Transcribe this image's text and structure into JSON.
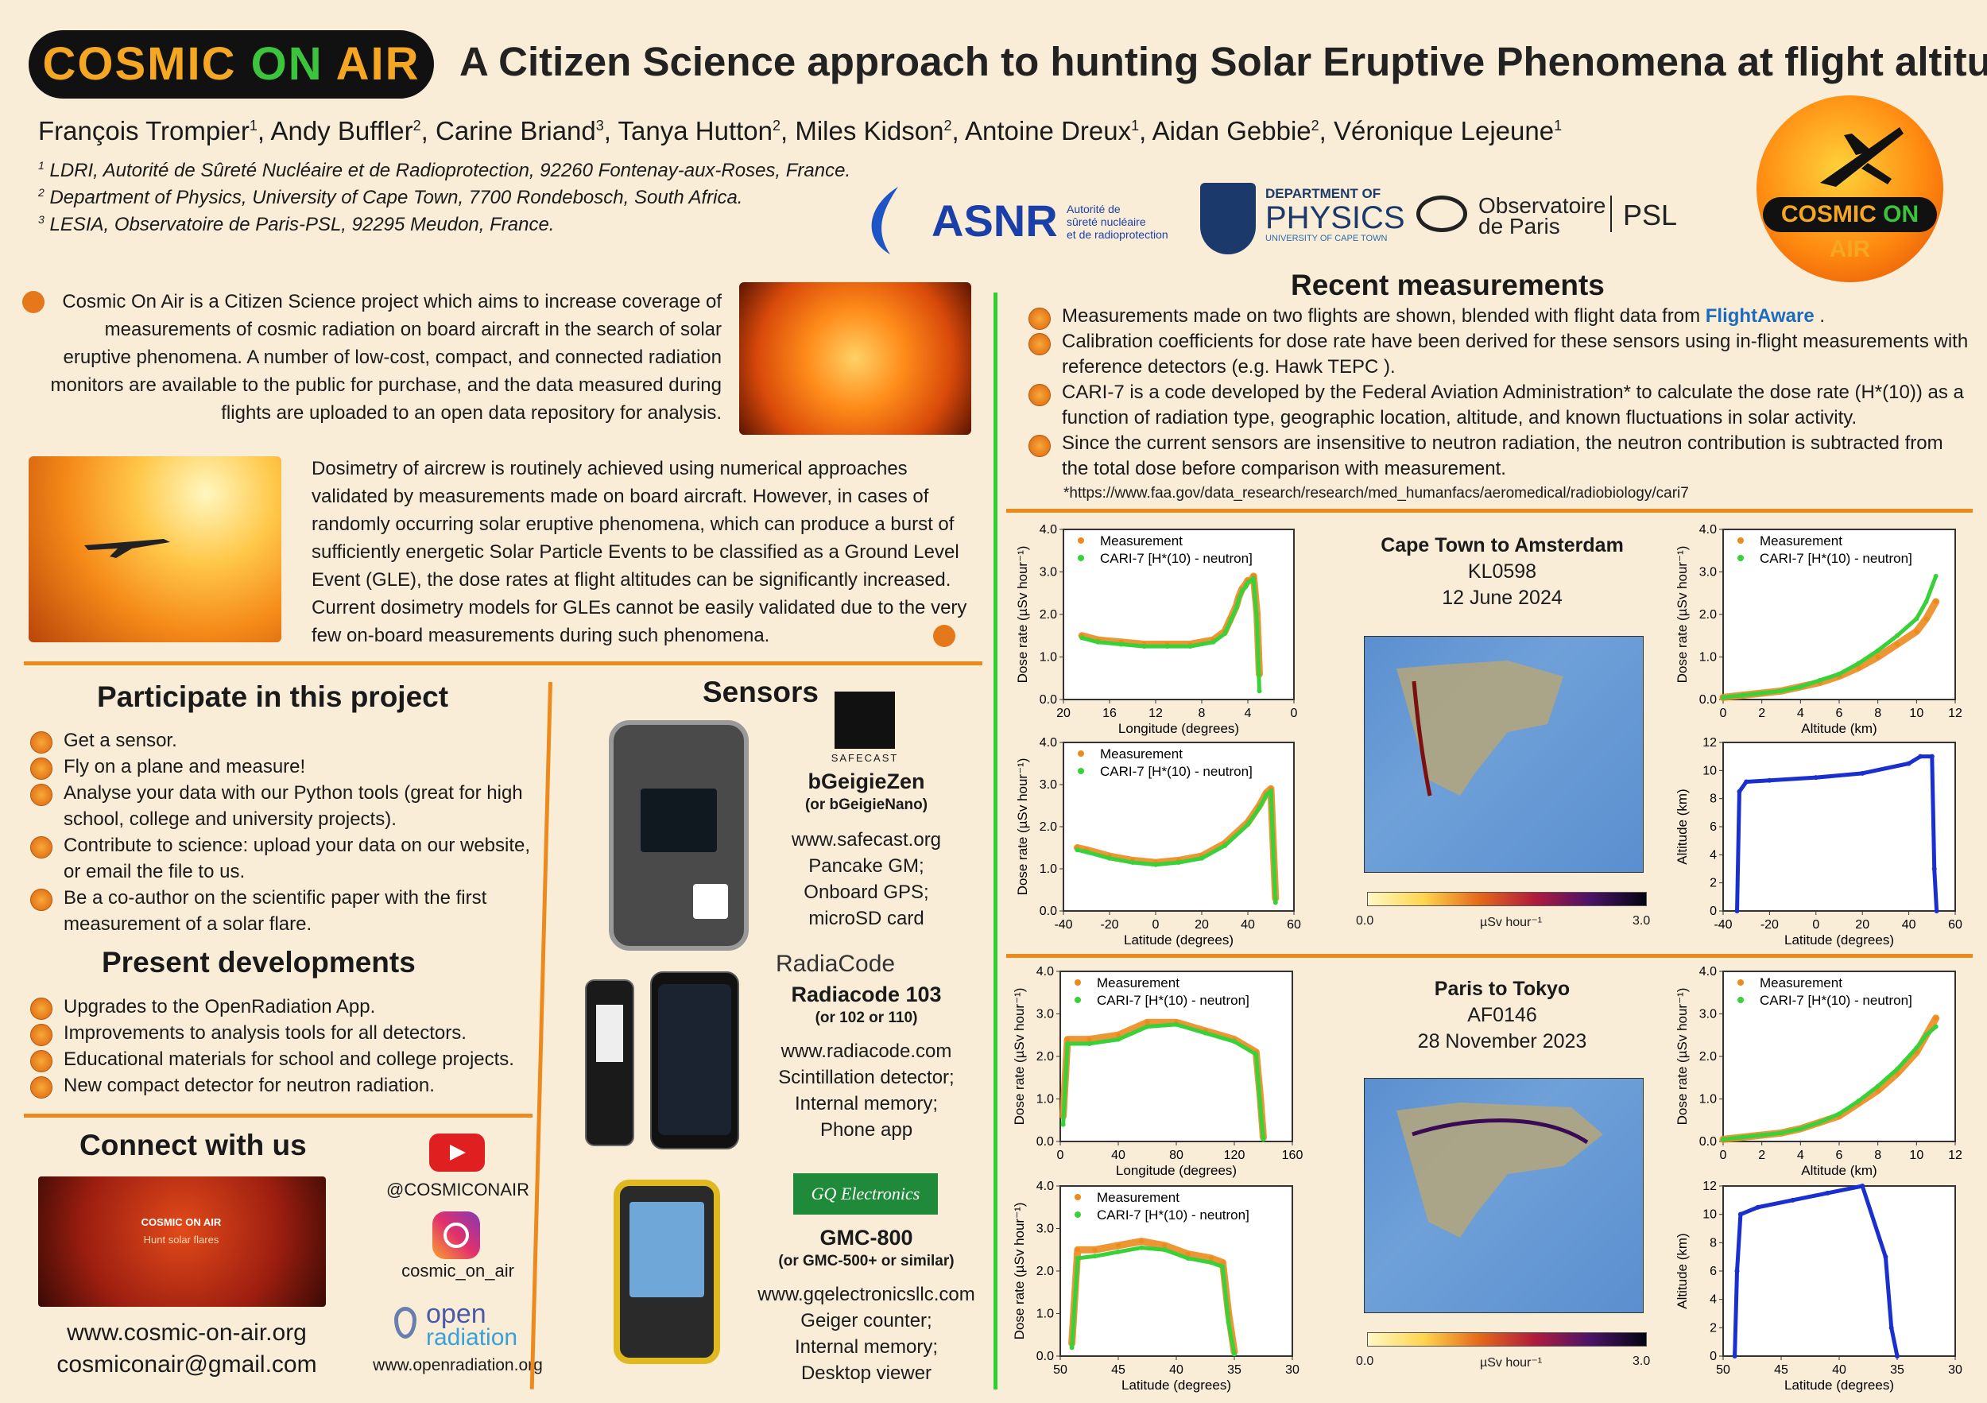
{
  "header": {
    "logo_text_a": "COSMIC ",
    "logo_text_on": "ON",
    "logo_text_b": " AIR",
    "title": "A Citizen Science approach to hunting Solar Eruptive Phenomena at flight altitudes",
    "authors": [
      {
        "name": "François Trompier",
        "sup": "1"
      },
      {
        "name": "Andy Buffler",
        "sup": "2"
      },
      {
        "name": "Carine Briand",
        "sup": "3"
      },
      {
        "name": "Tanya Hutton",
        "sup": "2"
      },
      {
        "name": "Miles Kidson",
        "sup": "2"
      },
      {
        "name": "Antoine Dreux",
        "sup": "1"
      },
      {
        "name": "Aidan Gebbie",
        "sup": "2"
      },
      {
        "name": "Véronique Lejeune",
        "sup": "1"
      }
    ],
    "affiliations": [
      {
        "sup": "1",
        "text": "LDRI, Autorité de Sûreté Nucléaire et de Radioprotection, 92260 Fontenay-aux-Roses, France."
      },
      {
        "sup": "2",
        "text": "Department of Physics, University of Cape Town, 7700 Rondebosch, South Africa."
      },
      {
        "sup": "3",
        "text": "LESIA, Observatoire de Paris-PSL, 92295 Meudon, France."
      }
    ],
    "partners": {
      "asnr": "ASNR",
      "asnr_sub1": "Autorité de",
      "asnr_sub2": "sûreté nucléaire",
      "asnr_sub3": "et de radioprotection",
      "uct_a": "DEPARTMENT OF",
      "uct_b": "PHYSICS",
      "uct_c": "UNIVERSITY OF CAPE TOWN",
      "obs_a": "Observatoire",
      "obs_b": "de Paris",
      "psl": "PSL"
    },
    "round_logo_a": "COSMIC ",
    "round_logo_on": "ON",
    "round_logo_b": " AIR"
  },
  "intro": {
    "p1": "Cosmic On Air is a Citizen Science project which aims to increase coverage of measurements of cosmic radiation on board aircraft in the search of solar eruptive phenomena. A number of low-cost, compact, and connected radiation monitors are available to the public for purchase, and the data measured during flights are uploaded to an open data repository for analysis.",
    "p2": "Dosimetry of aircrew is routinely achieved using numerical approaches validated by measurements made on board aircraft. However, in cases of randomly occurring solar eruptive phenomena, which can produce a burst of sufficiently energetic Solar Particle Events to be classified as a Ground Level Event (GLE), the dose rates at flight altitudes can be significantly increased. Current dosimetry models for GLEs cannot be easily validated due to the very few on-board measurements during such phenomena."
  },
  "participate": {
    "heading": "Participate in this project",
    "items": [
      "Get a sensor.",
      "Fly on a plane and measure!",
      "Analyse your data with our Python tools (great for high school, college and university projects).",
      "Contribute to science: upload your data on our website, or email the file to us.",
      "Be a co-author on the scientific paper with the first measurement of a solar flare."
    ]
  },
  "developments": {
    "heading": "Present developments",
    "items": [
      "Upgrades to the OpenRadiation App.",
      "Improvements to analysis tools for all detectors.",
      "Educational materials for school and college projects.",
      "New compact detector for neutron radiation."
    ]
  },
  "connect": {
    "heading": "Connect with us",
    "banner_brand": "COSMIC ON AIR",
    "banner_tagline": "Hunt solar flares",
    "youtube": "@COSMICONAIR",
    "instagram": "cosmic_on_air",
    "openradiation_a": "open",
    "openradiation_b": "radiation",
    "openradiation_url": "www.openradiation.org",
    "website": "www.cosmic-on-air.org",
    "email": "cosmiconair@gmail.com"
  },
  "sensors": {
    "heading": "Sensors",
    "items": [
      {
        "brand": "SAFECAST",
        "name": "bGeigieZen",
        "sub": "(or bGeigieNano)",
        "url": "www.safecast.org",
        "features": [
          "Pancake GM;",
          "Onboard GPS;",
          "microSD card"
        ]
      },
      {
        "brand": "RadiaCode",
        "name": "Radiacode 103",
        "sub": "(or 102 or 110)",
        "url": "www.radiacode.com",
        "features": [
          "Scintillation detector;",
          "Internal memory;",
          "Phone app"
        ]
      },
      {
        "brand": "GQ Electronics",
        "name": "GMC-800",
        "sub": "(or GMC-500+ or similar)",
        "url": "www.gqelectronicsllc.com",
        "features": [
          "Geiger counter;",
          "Internal memory;",
          "Desktop viewer"
        ]
      }
    ]
  },
  "recent": {
    "heading": "Recent measurements",
    "items": [
      "Measurements made on two flights are shown, blended with flight data from",
      "Calibration coefficients for dose rate have been derived for these sensors using in-flight measurements with reference detectors (e.g. Hawk TEPC ).",
      "CARI-7 is a code developed by the Federal Aviation Administration* to calculate the dose rate (H*(10)) as a function of radiation type, geographic location, altitude, and known fluctuations in solar activity.",
      "Since the current sensors are insensitive to neutron radiation, the neutron contribution is subtracted from the total dose before comparison with measurement."
    ],
    "flightaware": "FlightAware",
    "footnote": "*https://www.faa.gov/data_research/research/med_humanfacs/aeromedical/radiobiology/cari7"
  },
  "flights": [
    {
      "route": "Cape Town to Amsterdam",
      "code": "KL0598",
      "date": "12 June 2024",
      "cbar_min": "0.0",
      "cbar_unit": "µSv hour⁻¹",
      "cbar_max": "3.0"
    },
    {
      "route": "Paris to Tokyo",
      "code": "AF0146",
      "date": "28 November 2023",
      "cbar_min": "0.0",
      "cbar_unit": "µSv hour⁻¹",
      "cbar_max": "3.0"
    }
  ],
  "legend": {
    "measurement": "Measurement",
    "cari": "CARI-7 [H*(10) - neutron]"
  },
  "chart_data": [
    {
      "type": "scatter",
      "id": "f1-lon",
      "xlabel": "Longitude (degrees)",
      "ylabel": "Dose rate (µSv hour⁻¹)",
      "xlim": [
        20,
        0
      ],
      "ylim": [
        0,
        4
      ],
      "xticks": [
        "20",
        "16",
        "12",
        "8",
        "4",
        "0"
      ],
      "yticks": [
        "0.0",
        "1.0",
        "2.0",
        "3.0",
        "4.0"
      ],
      "series": [
        {
          "name": "Measurement",
          "x": [
            18.4,
            17,
            15,
            13,
            11,
            9,
            7,
            6,
            5.5,
            5,
            4.8,
            4.5,
            4.2,
            4,
            3.7,
            3.5,
            3.2,
            3
          ],
          "y": [
            1.5,
            1.4,
            1.35,
            1.3,
            1.3,
            1.3,
            1.4,
            1.6,
            1.9,
            2.2,
            2.4,
            2.6,
            2.7,
            2.8,
            2.8,
            2.9,
            2.0,
            0.6
          ]
        },
        {
          "name": "CARI-7 [H*(10) - neutron]",
          "x": [
            18.4,
            17,
            15,
            13,
            11,
            9,
            7,
            6,
            5.5,
            5,
            4.8,
            4.5,
            4.2,
            4,
            3.7,
            3.5,
            3.2,
            3
          ],
          "y": [
            1.45,
            1.35,
            1.3,
            1.25,
            1.25,
            1.25,
            1.35,
            1.55,
            1.85,
            2.15,
            2.35,
            2.55,
            2.65,
            2.75,
            2.8,
            2.85,
            1.8,
            0.2
          ]
        }
      ]
    },
    {
      "type": "scatter",
      "id": "f1-lat",
      "xlabel": "Latitude (degrees)",
      "ylabel": "Dose rate (µSv hour⁻¹)",
      "xlim": [
        -40,
        60
      ],
      "ylim": [
        0,
        4
      ],
      "xticks": [
        "-40",
        "-20",
        "0",
        "20",
        "40",
        "60"
      ],
      "yticks": [
        "0.0",
        "1.0",
        "2.0",
        "3.0",
        "4.0"
      ],
      "series": [
        {
          "name": "Measurement",
          "x": [
            -34,
            -30,
            -20,
            -10,
            0,
            10,
            20,
            30,
            40,
            45,
            48,
            50,
            52
          ],
          "y": [
            1.5,
            1.45,
            1.3,
            1.2,
            1.15,
            1.2,
            1.3,
            1.6,
            2.1,
            2.5,
            2.8,
            2.9,
            0.3
          ]
        },
        {
          "name": "CARI-7 [H*(10) - neutron]",
          "x": [
            -34,
            -30,
            -20,
            -10,
            0,
            10,
            20,
            30,
            40,
            45,
            48,
            50,
            52
          ],
          "y": [
            1.45,
            1.4,
            1.25,
            1.15,
            1.1,
            1.15,
            1.25,
            1.55,
            2.05,
            2.45,
            2.75,
            2.85,
            0.2
          ]
        }
      ]
    },
    {
      "type": "scatter",
      "id": "f1-alt",
      "xlabel": "Altitude (km)",
      "ylabel": "Dose rate (µSv hour⁻¹)",
      "xlim": [
        0,
        12
      ],
      "ylim": [
        0,
        4
      ],
      "xticks": [
        "0",
        "2",
        "4",
        "6",
        "8",
        "10",
        "12"
      ],
      "yticks": [
        "0.0",
        "1.0",
        "2.0",
        "3.0",
        "4.0"
      ],
      "series": [
        {
          "name": "Measurement",
          "x": [
            0,
            1,
            2,
            3,
            4,
            5,
            6,
            7,
            8,
            9,
            10,
            10.5,
            11
          ],
          "y": [
            0.05,
            0.1,
            0.15,
            0.2,
            0.3,
            0.4,
            0.55,
            0.75,
            1.0,
            1.3,
            1.6,
            1.9,
            2.3
          ]
        },
        {
          "name": "CARI-7 [H*(10) - neutron]",
          "x": [
            0,
            1,
            2,
            3,
            4,
            5,
            6,
            7,
            8,
            9,
            10,
            10.5,
            11
          ],
          "y": [
            0.05,
            0.1,
            0.15,
            0.2,
            0.3,
            0.45,
            0.6,
            0.85,
            1.15,
            1.5,
            1.9,
            2.3,
            2.9
          ]
        }
      ]
    },
    {
      "type": "line",
      "id": "f1-altlat",
      "xlabel": "Latitude (degrees)",
      "ylabel": "Altitude (km)",
      "xlim": [
        -40,
        60
      ],
      "ylim": [
        0,
        12
      ],
      "xticks": [
        "-40",
        "-20",
        "0",
        "20",
        "40",
        "60"
      ],
      "yticks": [
        "0",
        "2",
        "4",
        "6",
        "8",
        "10",
        "12"
      ],
      "series": [
        {
          "name": "Altitude",
          "x": [
            -34,
            -33,
            -30,
            -20,
            0,
            20,
            40,
            45,
            50,
            51,
            52
          ],
          "y": [
            0,
            8.5,
            9.2,
            9.3,
            9.5,
            9.8,
            10.5,
            11,
            11,
            3,
            0
          ]
        }
      ]
    },
    {
      "type": "scatter",
      "id": "f2-lon",
      "xlabel": "Longitude (degrees)",
      "ylabel": "Dose rate (µSv hour⁻¹)",
      "xlim": [
        0,
        160
      ],
      "ylim": [
        0,
        4
      ],
      "xticks": [
        "0",
        "40",
        "80",
        "120",
        "160"
      ],
      "yticks": [
        "0.0",
        "1.0",
        "2.0",
        "3.0",
        "4.0"
      ],
      "series": [
        {
          "name": "Measurement",
          "x": [
            2,
            5,
            20,
            40,
            60,
            80,
            100,
            120,
            135,
            138,
            140
          ],
          "y": [
            0.6,
            2.4,
            2.4,
            2.5,
            2.8,
            2.8,
            2.6,
            2.4,
            2.1,
            1.0,
            0.1
          ]
        },
        {
          "name": "CARI-7 [H*(10) - neutron]",
          "x": [
            2,
            5,
            20,
            40,
            60,
            80,
            100,
            120,
            135,
            138,
            140
          ],
          "y": [
            0.4,
            2.3,
            2.3,
            2.4,
            2.7,
            2.75,
            2.55,
            2.35,
            2.05,
            0.8,
            0.05
          ]
        }
      ]
    },
    {
      "type": "scatter",
      "id": "f2-lat",
      "xlabel": "Latitude (degrees)",
      "ylabel": "Dose rate (µSv hour⁻¹)",
      "xlim": [
        50,
        30
      ],
      "ylim": [
        0,
        4
      ],
      "xticks": [
        "50",
        "45",
        "40",
        "35",
        "30"
      ],
      "yticks": [
        "0.0",
        "1.0",
        "2.0",
        "3.0",
        "4.0"
      ],
      "series": [
        {
          "name": "Measurement",
          "x": [
            49,
            48.5,
            47,
            45,
            43,
            41,
            39,
            37,
            36,
            35.5,
            35
          ],
          "y": [
            0.3,
            2.5,
            2.5,
            2.6,
            2.7,
            2.6,
            2.4,
            2.3,
            2.2,
            1.0,
            0.1
          ]
        },
        {
          "name": "CARI-7 [H*(10) - neutron]",
          "x": [
            49,
            48.5,
            47,
            45,
            43,
            41,
            39,
            37,
            36,
            35.5,
            35
          ],
          "y": [
            0.2,
            2.3,
            2.35,
            2.45,
            2.55,
            2.5,
            2.3,
            2.2,
            2.1,
            0.8,
            0.05
          ]
        }
      ]
    },
    {
      "type": "scatter",
      "id": "f2-alt",
      "xlabel": "Altitude (km)",
      "ylabel": "Dose rate (µSv hour⁻¹)",
      "xlim": [
        0,
        12
      ],
      "ylim": [
        0,
        4
      ],
      "xticks": [
        "0",
        "2",
        "4",
        "6",
        "8",
        "10",
        "12"
      ],
      "yticks": [
        "0.0",
        "1.0",
        "2.0",
        "3.0",
        "4.0"
      ],
      "series": [
        {
          "name": "Measurement",
          "x": [
            0,
            1,
            2,
            3,
            4,
            5,
            6,
            7,
            8,
            9,
            10,
            10.5,
            11
          ],
          "y": [
            0.05,
            0.1,
            0.15,
            0.2,
            0.3,
            0.45,
            0.6,
            0.9,
            1.2,
            1.6,
            2.1,
            2.5,
            2.9
          ]
        },
        {
          "name": "CARI-7 [H*(10) - neutron]",
          "x": [
            0,
            1,
            2,
            3,
            4,
            5,
            6,
            7,
            8,
            9,
            10,
            10.5,
            11
          ],
          "y": [
            0.05,
            0.1,
            0.15,
            0.2,
            0.3,
            0.45,
            0.65,
            0.95,
            1.3,
            1.7,
            2.2,
            2.5,
            2.7
          ]
        }
      ]
    },
    {
      "type": "line",
      "id": "f2-altlat",
      "xlabel": "Latitude (degrees)",
      "ylabel": "Altitude (km)",
      "xlim": [
        50,
        30
      ],
      "ylim": [
        0,
        12
      ],
      "xticks": [
        "50",
        "45",
        "40",
        "35",
        "30"
      ],
      "yticks": [
        "0",
        "2",
        "4",
        "6",
        "8",
        "10",
        "12"
      ],
      "series": [
        {
          "name": "Altitude",
          "x": [
            49,
            48.8,
            48.5,
            47,
            44,
            41,
            38,
            36,
            35.5,
            35
          ],
          "y": [
            0,
            6,
            10,
            10.5,
            11,
            11.5,
            12,
            7,
            2,
            0
          ]
        }
      ]
    }
  ]
}
